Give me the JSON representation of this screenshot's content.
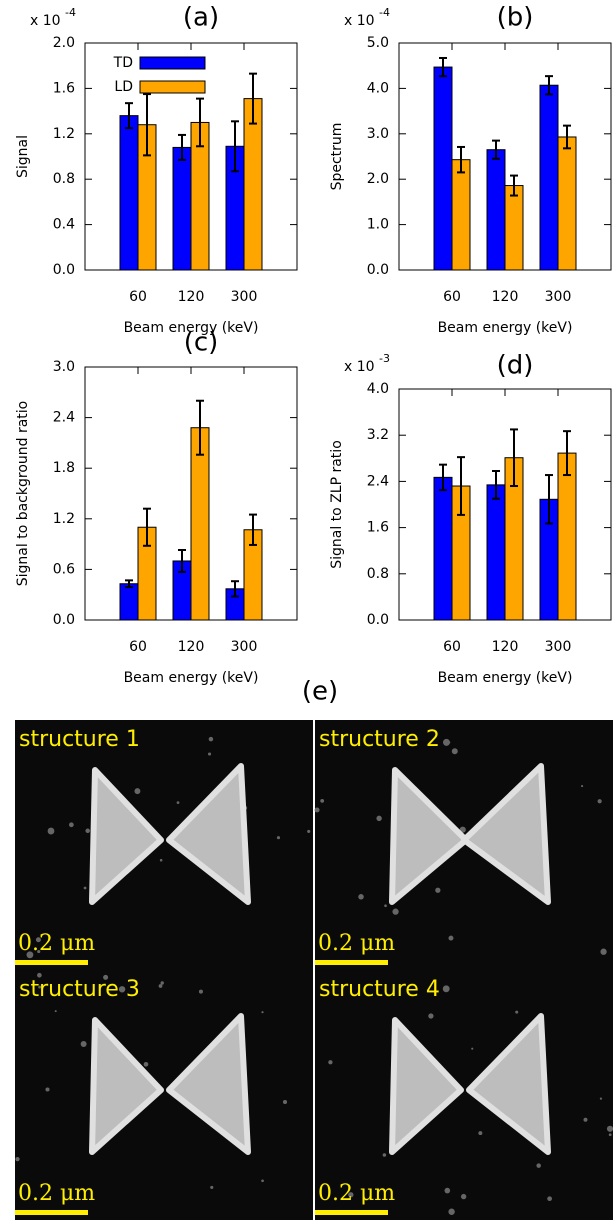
{
  "chart_data": [
    {
      "type": "bar",
      "title": "(a)",
      "y_label": "Signal",
      "x_label": "Beam energy (keV)",
      "y_multiplier": {
        "base": "x 10",
        "exponent": "-4"
      },
      "categories": [
        "60",
        "120",
        "300"
      ],
      "series": [
        {
          "name": "TD",
          "color": "#0000ff",
          "values": [
            1.36,
            1.08,
            1.09
          ],
          "errors": [
            0.11,
            0.11,
            0.22
          ]
        },
        {
          "name": "LD",
          "color": "#ffa500",
          "values": [
            1.28,
            1.3,
            1.51
          ],
          "errors": [
            0.27,
            0.21,
            0.22
          ]
        }
      ],
      "legend": "top-left",
      "ylim": [
        0,
        2.0
      ],
      "yticks": [
        {
          "value": 0,
          "label": "0.0"
        },
        0.4,
        0.8,
        1.2,
        1.6,
        {
          "value": 2.0,
          "label": "2.0"
        }
      ]
    },
    {
      "type": "bar",
      "title": "(b)",
      "y_label": "Spectrum",
      "x_label": "Beam energy (keV)",
      "y_multiplier": {
        "base": "x 10",
        "exponent": "-4"
      },
      "categories": [
        "60",
        "120",
        "300"
      ],
      "series": [
        {
          "color": "#0000ff",
          "values": [
            4.47,
            2.65,
            4.07
          ],
          "errors": [
            0.2,
            0.2,
            0.2
          ]
        },
        {
          "color": "#ffa500",
          "values": [
            2.43,
            1.86,
            2.93
          ],
          "errors": [
            0.28,
            0.22,
            0.25
          ]
        }
      ],
      "ylim": [
        0,
        5.0
      ],
      "yticks": [
        {
          "value": 0,
          "label": "0.0"
        },
        {
          "value": 1,
          "label": "1.0"
        },
        {
          "value": 2,
          "label": "2.0"
        },
        {
          "value": 3,
          "label": "3.0"
        },
        {
          "value": 4,
          "label": "4.0"
        },
        {
          "value": 5,
          "label": "5.0"
        }
      ]
    },
    {
      "type": "bar",
      "title": "(c)",
      "y_label": "Signal to background ratio",
      "x_label": "Beam energy (keV)",
      "categories": [
        "60",
        "120",
        "300"
      ],
      "series": [
        {
          "color": "#0000ff",
          "values": [
            0.43,
            0.7,
            0.37
          ],
          "errors": [
            0.04,
            0.13,
            0.09
          ]
        },
        {
          "color": "#ffa500",
          "values": [
            1.1,
            2.28,
            1.07
          ],
          "errors": [
            0.22,
            0.32,
            0.18
          ]
        }
      ],
      "ylim": [
        0,
        3.0
      ],
      "yticks": [
        {
          "value": 0,
          "label": "0.0"
        },
        0.6,
        1.2,
        1.8,
        2.4,
        {
          "value": 3,
          "label": "3.0"
        }
      ]
    },
    {
      "type": "bar",
      "title": "(d)",
      "y_label": "Signal to ZLP ratio",
      "x_label": "Beam energy (keV)",
      "y_multiplier": {
        "base": "x 10",
        "exponent": "-3"
      },
      "categories": [
        "60",
        "120",
        "300"
      ],
      "series": [
        {
          "color": "#0000ff",
          "values": [
            2.47,
            2.34,
            2.09
          ],
          "errors": [
            0.22,
            0.24,
            0.42
          ]
        },
        {
          "color": "#ffa500",
          "values": [
            2.32,
            2.81,
            2.89
          ],
          "errors": [
            0.5,
            0.49,
            0.38
          ]
        }
      ],
      "ylim": [
        0,
        4.0
      ],
      "yticks": [
        {
          "value": 0,
          "label": "0.0"
        },
        0.8,
        1.6,
        2.4,
        3.2,
        {
          "value": 4,
          "label": "4.0"
        }
      ]
    }
  ],
  "panel_e": {
    "title": "(e)",
    "images": [
      {
        "label": "structure 1",
        "scale_bar": "0.2 μm"
      },
      {
        "label": "structure 2",
        "scale_bar": "0.2 μm"
      },
      {
        "label": "structure 3",
        "scale_bar": "0.2 μm"
      },
      {
        "label": "structure 4",
        "scale_bar": "0.2 μm"
      }
    ]
  }
}
